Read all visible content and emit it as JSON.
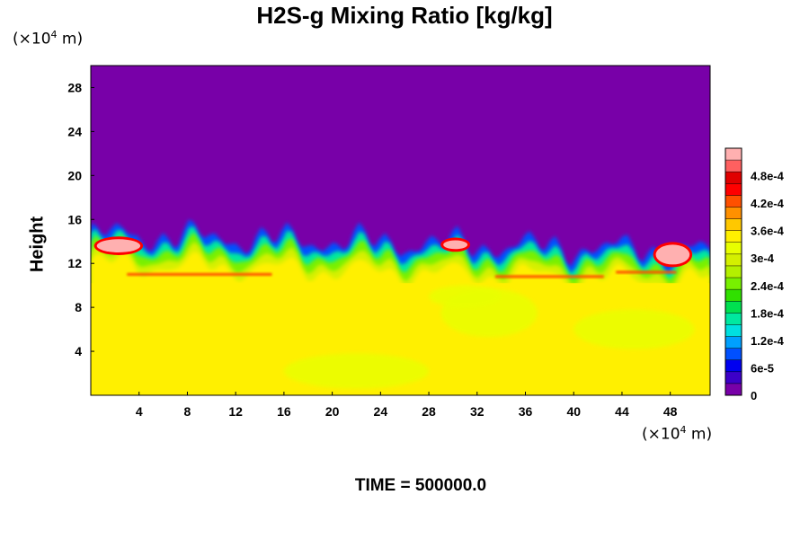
{
  "chart_data": {
    "type": "heatmap",
    "title": "H2S-g Mixing Ratio [kg/kg]",
    "ylabel": "Height",
    "xlabel": "",
    "x_unit": {
      "prefix": "(×10",
      "exp": "4",
      "suffix": " m)"
    },
    "y_unit": {
      "prefix": "(×10",
      "exp": "4",
      "suffix": " m)"
    },
    "xlim": [
      0,
      51.3
    ],
    "ylim": [
      0,
      30
    ],
    "x_ticks": [
      4,
      8,
      12,
      16,
      20,
      24,
      28,
      32,
      36,
      40,
      44,
      48
    ],
    "y_ticks": [
      4,
      8,
      12,
      16,
      20,
      24,
      28
    ],
    "colorbar": {
      "range": [
        0,
        0.00054
      ],
      "labels": [
        {
          "value": 0,
          "text": "0"
        },
        {
          "value": 6e-05,
          "text": "6e-5"
        },
        {
          "value": 0.00012,
          "text": "1.2e-4"
        },
        {
          "value": 0.00018,
          "text": "1.8e-4"
        },
        {
          "value": 0.00024,
          "text": "2.4e-4"
        },
        {
          "value": 0.0003,
          "text": "3e-4"
        },
        {
          "value": 0.00036,
          "text": "3.6e-4"
        },
        {
          "value": 0.00042,
          "text": "4.2e-4"
        },
        {
          "value": 0.00048,
          "text": "4.8e-4"
        }
      ],
      "colors": [
        "#7800a8",
        "#3c00c8",
        "#0000f0",
        "#0050ff",
        "#00a0ff",
        "#00e0e0",
        "#00e8a0",
        "#00e050",
        "#30e000",
        "#78f000",
        "#b4f000",
        "#d4f000",
        "#e8ff00",
        "#fff000",
        "#ffc800",
        "#ff9000",
        "#ff5000",
        "#ff0000",
        "#e00000",
        "#ff6060",
        "#ffb0b0"
      ]
    },
    "field_description": {
      "lower_layer_value": 0.00035,
      "upper_layer_value": 0,
      "interface_height_approx": [
        14.3,
        10.5
      ]
    }
  },
  "footer": {
    "time_label": "TIME = 500000.0"
  }
}
